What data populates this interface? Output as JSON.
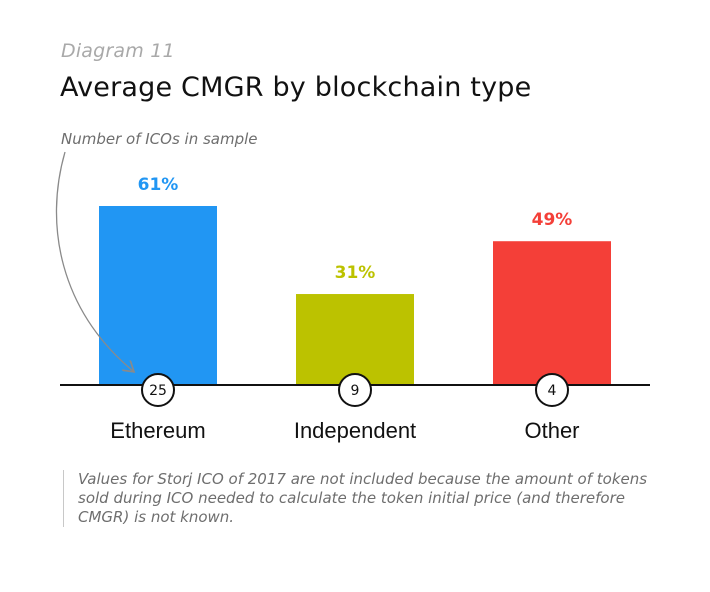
{
  "diagram_label": "Diagram 11",
  "title": "Average CMGR by blockchain type",
  "sample_label": "Number of ICOs in sample",
  "footnote": "Values for Storj ICO of 2017 are not included because the amount of tokens sold during ICO needed to calculate the token initial price (and therefore CMGR) is not known.",
  "colors": {
    "ethereum": "#2196f3",
    "independent": "#bcc200",
    "other": "#f43f38",
    "axis": "#111111",
    "arrow": "#8a8a8a"
  },
  "chart_data": {
    "type": "bar",
    "categories": [
      "Ethereum",
      "Independent",
      "Other"
    ],
    "values": [
      61,
      31,
      49
    ],
    "value_labels": [
      "61%",
      "31%",
      "49%"
    ],
    "sample_counts": [
      "25",
      "9",
      "4"
    ],
    "ylim": [
      0,
      61
    ],
    "grid": false
  }
}
